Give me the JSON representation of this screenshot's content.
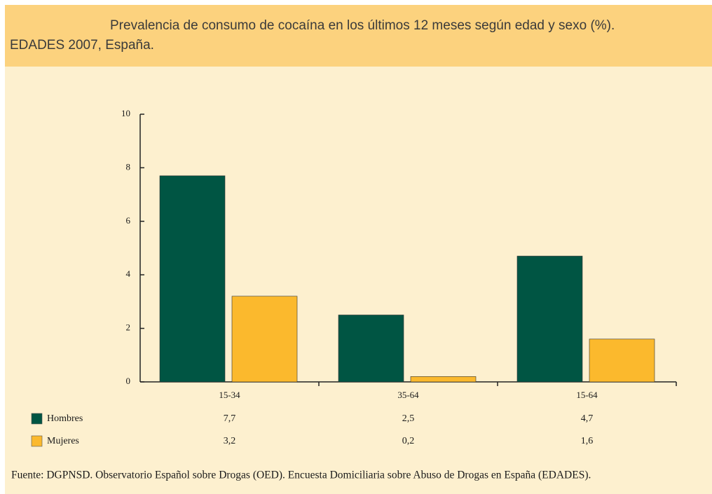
{
  "chart_data": {
    "type": "bar",
    "title": "Prevalencia de consumo de cocaína en los últimos 12 meses según edad y sexo (%).",
    "subtitle": "EDADES 2007, España.",
    "categories": [
      "15-34",
      "35-64",
      "15-64"
    ],
    "series": [
      {
        "name": "Hombres",
        "color": "#005543",
        "values": [
          7.7,
          2.5,
          4.7
        ],
        "value_labels": [
          "7,7",
          "2,5",
          "4,7"
        ]
      },
      {
        "name": "Mujeres",
        "color": "#fbb92d",
        "values": [
          3.2,
          0.2,
          1.6
        ],
        "value_labels": [
          "3,2",
          "0,2",
          "1,6"
        ]
      }
    ],
    "ylim": [
      0,
      10
    ],
    "yticks": [
      0,
      2,
      4,
      6,
      8,
      10
    ],
    "source": "Fuente: DGPNSD. Observatorio Español sobre Drogas (OED). Encuesta Domiciliaria sobre Abuso de Drogas en España (EDADES)."
  }
}
